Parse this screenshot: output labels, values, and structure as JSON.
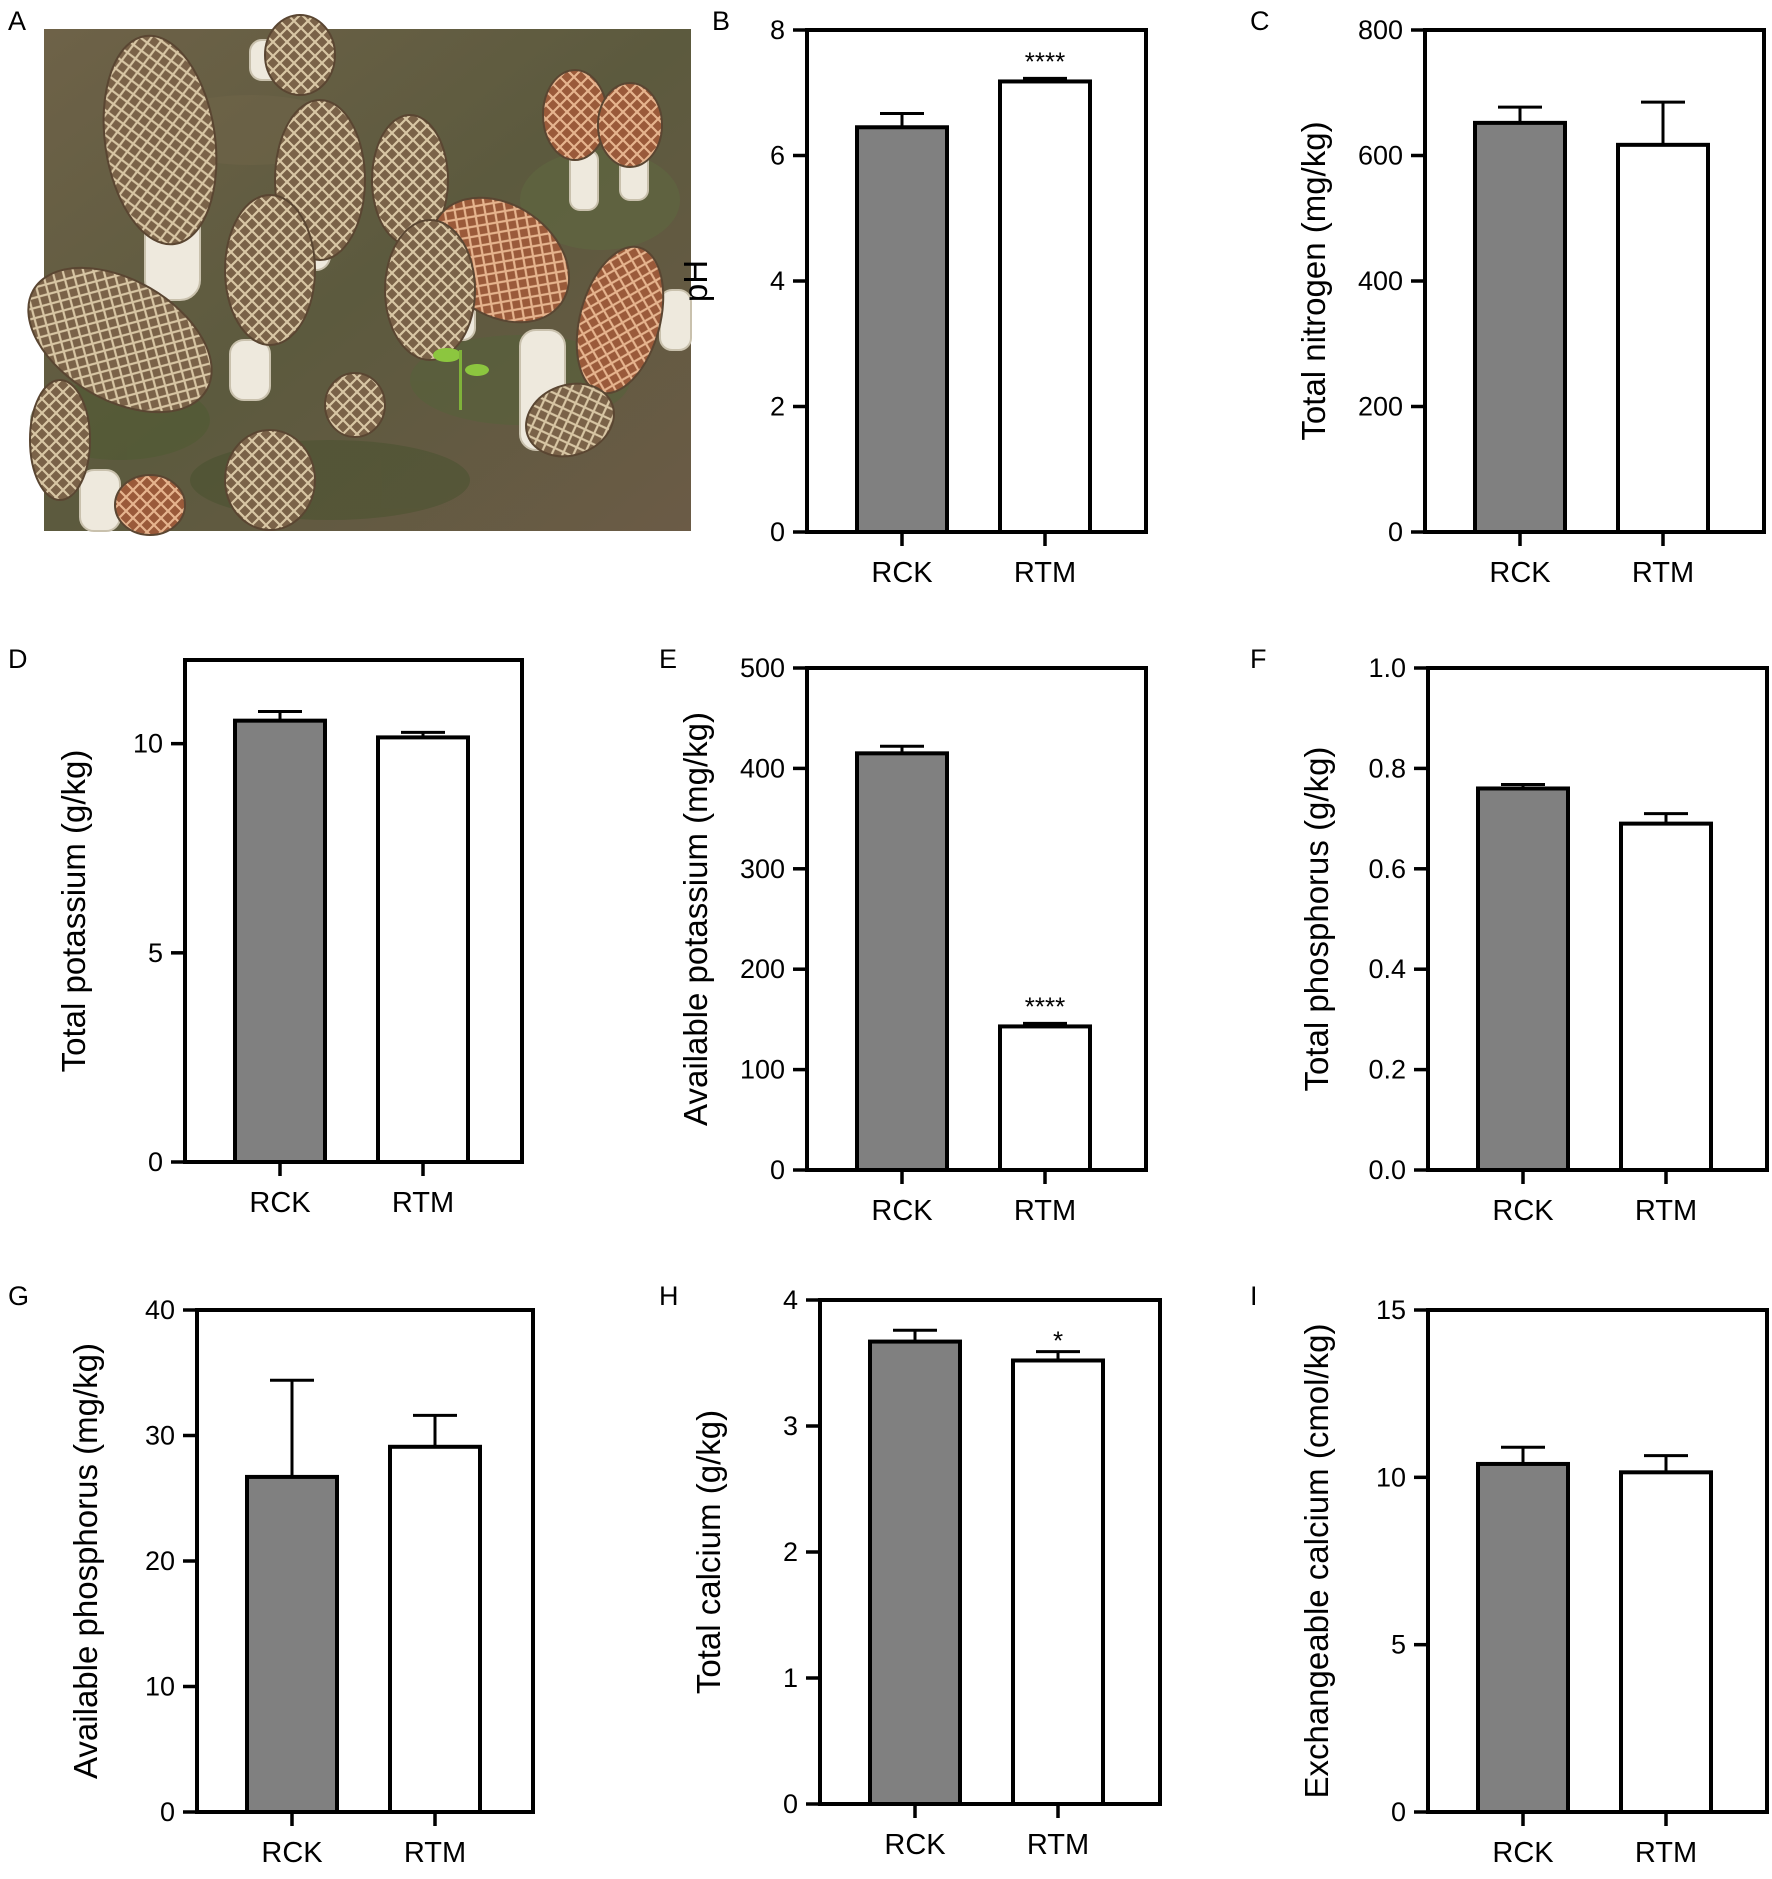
{
  "figure": {
    "photo": {
      "letter": "A",
      "subject": "morel mushrooms growing on soil"
    },
    "colors": {
      "bar_rck": "#808080",
      "bar_rtm": "#ffffff",
      "stroke": "#000000"
    }
  },
  "chart_data": [
    {
      "letter": "B",
      "type": "bar",
      "ylabel": "pH",
      "ylim": [
        0,
        8
      ],
      "ticks": [
        0,
        2,
        4,
        6,
        8
      ],
      "tick_labels": [
        "0",
        "2",
        "4",
        "6",
        "8"
      ],
      "categories": [
        "RCK",
        "RTM"
      ],
      "values": [
        6.45,
        7.18
      ],
      "errors": [
        0.22,
        0.05
      ],
      "significance": [
        "",
        "****"
      ]
    },
    {
      "letter": "C",
      "type": "bar",
      "ylabel": "Total nitrogen (mg/kg)",
      "ylim": [
        0,
        800
      ],
      "ticks": [
        0,
        200,
        400,
        600,
        800
      ],
      "tick_labels": [
        "0",
        "200",
        "400",
        "600",
        "800"
      ],
      "categories": [
        "RCK",
        "RTM"
      ],
      "values": [
        652,
        617
      ],
      "errors": [
        25,
        68
      ],
      "significance": [
        "",
        ""
      ]
    },
    {
      "letter": "D",
      "type": "bar",
      "ylabel": "Total potassium (g/kg)",
      "ylim": [
        0,
        12
      ],
      "ticks": [
        0,
        5,
        10
      ],
      "tick_labels": [
        "0",
        "5",
        "10"
      ],
      "categories": [
        "RCK",
        "RTM"
      ],
      "values": [
        10.55,
        10.15
      ],
      "errors": [
        0.22,
        0.12
      ],
      "significance": [
        "",
        ""
      ]
    },
    {
      "letter": "E",
      "type": "bar",
      "ylabel": "Available potassium (mg/kg)",
      "ylim": [
        0,
        500
      ],
      "ticks": [
        0,
        100,
        200,
        300,
        400,
        500
      ],
      "tick_labels": [
        "0",
        "100",
        "200",
        "300",
        "400",
        "500"
      ],
      "categories": [
        "RCK",
        "RTM"
      ],
      "values": [
        415,
        143
      ],
      "errors": [
        7,
        3
      ],
      "significance": [
        "",
        "****"
      ]
    },
    {
      "letter": "F",
      "type": "bar",
      "ylabel": "Total phosphorus (g/kg)",
      "ylim": [
        0,
        1.0
      ],
      "ticks": [
        0,
        0.2,
        0.4,
        0.6,
        0.8,
        1.0
      ],
      "tick_labels": [
        "0.0",
        "0.2",
        "0.4",
        "0.6",
        "0.8",
        "1.0"
      ],
      "categories": [
        "RCK",
        "RTM"
      ],
      "values": [
        0.76,
        0.69
      ],
      "errors": [
        0.008,
        0.02
      ],
      "significance": [
        "",
        ""
      ]
    },
    {
      "letter": "G",
      "type": "bar",
      "ylabel": "Available phosphorus (mg/kg)",
      "ylim": [
        0,
        40
      ],
      "ticks": [
        0,
        10,
        20,
        30,
        40
      ],
      "tick_labels": [
        "0",
        "10",
        "20",
        "30",
        "40"
      ],
      "categories": [
        "RCK",
        "RTM"
      ],
      "values": [
        26.7,
        29.1
      ],
      "errors": [
        7.7,
        2.5
      ],
      "significance": [
        "",
        ""
      ]
    },
    {
      "letter": "H",
      "type": "bar",
      "ylabel": "Total calcium (g/kg)",
      "ylim": [
        0,
        4
      ],
      "ticks": [
        0,
        1,
        2,
        3,
        4
      ],
      "tick_labels": [
        "0",
        "1",
        "2",
        "3",
        "4"
      ],
      "categories": [
        "RCK",
        "RTM"
      ],
      "values": [
        3.67,
        3.52
      ],
      "errors": [
        0.09,
        0.07
      ],
      "significance": [
        "",
        "*"
      ]
    },
    {
      "letter": "I",
      "type": "bar",
      "ylabel": "Exchangeable calcium (cmol/kg)",
      "ylim": [
        0,
        15
      ],
      "ticks": [
        0,
        5,
        10,
        15
      ],
      "tick_labels": [
        "0",
        "5",
        "10",
        "15"
      ],
      "categories": [
        "RCK",
        "RTM"
      ],
      "values": [
        10.4,
        10.15
      ],
      "errors": [
        0.5,
        0.5
      ],
      "significance": [
        "",
        ""
      ]
    }
  ]
}
